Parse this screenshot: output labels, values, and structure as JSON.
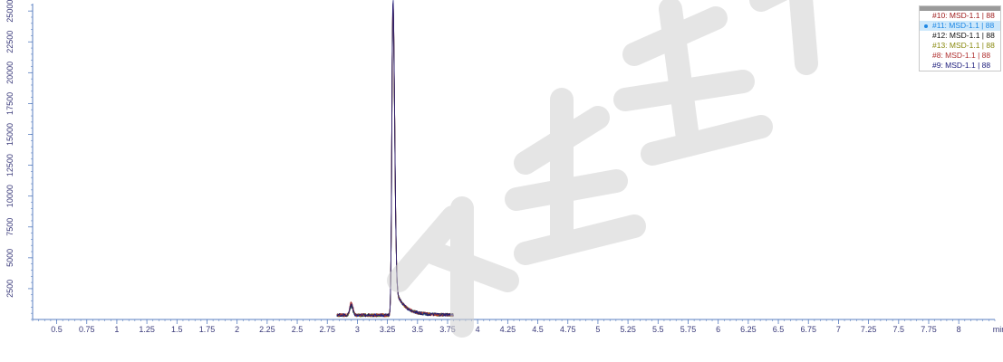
{
  "chart_data": {
    "type": "line",
    "x_unit": "min",
    "x_ticks": [
      "0.5",
      "0.75",
      "1",
      "1.25",
      "1.5",
      "1.75",
      "2",
      "2.25",
      "2.5",
      "2.75",
      "3",
      "3.25",
      "3.5",
      "3.75",
      "4",
      "4.25",
      "4.5",
      "4.75",
      "5",
      "5.25",
      "5.5",
      "5.75",
      "6",
      "6.25",
      "6.5",
      "6.75",
      "7",
      "7.25",
      "7.5",
      "7.75",
      "8"
    ],
    "y_ticks": [
      "2500",
      "5000",
      "7500",
      "10000",
      "12500",
      "15000",
      "17500",
      "20000",
      "22500",
      "25000"
    ],
    "xlim": [
      0.3,
      8.3
    ],
    "ylim": [
      0,
      25600
    ],
    "x_minor_step": 0.05,
    "y_minor_step": 500,
    "grid": false,
    "legend_position": "top-right",
    "selected_series": 1,
    "series": [
      {
        "name": "#10: MSD-1.1 | 88",
        "color": "#a02020",
        "peak": 25000,
        "bump": 1100
      },
      {
        "name": "#11: MSD-1.1 | 88",
        "color": "#1e88e5",
        "peak": 24600,
        "bump": 700
      },
      {
        "name": "#12: MSD-1.1 | 88",
        "color": "#111111",
        "peak": 24800,
        "bump": 750
      },
      {
        "name": "#13: MSD-1.1 | 88",
        "color": "#8a8a10",
        "peak": 24700,
        "bump": 800
      },
      {
        "name": "#8: MSD-1.1 | 88",
        "color": "#b03030",
        "peak": 24900,
        "bump": 1000
      },
      {
        "name": "#9: MSD-1.1 | 88",
        "color": "#1a1a7a",
        "peak": 25200,
        "bump": 900
      }
    ],
    "trace_profile": {
      "x_start": 2.83,
      "x_end": 3.8,
      "baseline": 350,
      "small_peak_x": 2.95,
      "main_peak_x": 3.295,
      "tail_level": 500
    }
  }
}
